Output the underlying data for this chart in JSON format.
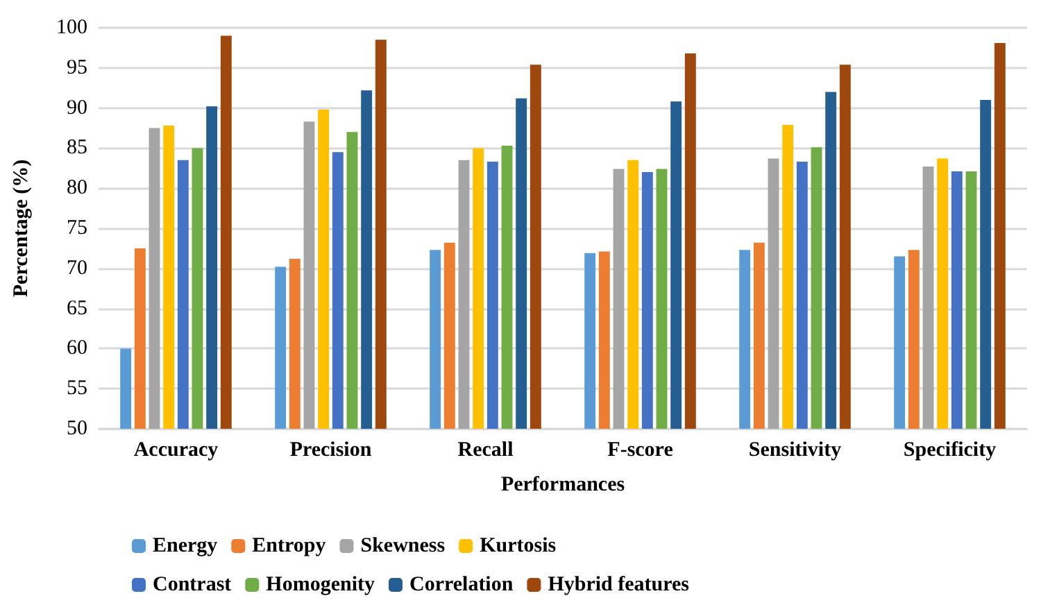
{
  "chart_data": {
    "type": "bar",
    "xlabel": "Performances",
    "ylabel": "Percentage (%)",
    "categories": [
      "Accuracy",
      "Precision",
      "Recall",
      "F-score",
      "Sensitivity",
      "Specificity"
    ],
    "series": [
      {
        "name": "Energy",
        "color": "#5b9bd5",
        "values": [
          60,
          70.2,
          72.3,
          71.9,
          72.3,
          71.5
        ]
      },
      {
        "name": "Entropy",
        "color": "#ed7d31",
        "values": [
          72.5,
          71.2,
          73.2,
          72.1,
          73.2,
          72.3
        ]
      },
      {
        "name": "Skewness",
        "color": "#a5a5a5",
        "values": [
          87.5,
          88.3,
          83.5,
          82.4,
          83.7,
          82.7
        ]
      },
      {
        "name": "Kurtosis",
        "color": "#ffc000",
        "values": [
          87.8,
          89.8,
          85,
          83.5,
          87.9,
          83.7
        ]
      },
      {
        "name": "Contrast",
        "color": "#4472c4",
        "values": [
          83.5,
          84.5,
          83.3,
          82,
          83.3,
          82.1
        ]
      },
      {
        "name": "Homogenity",
        "color": "#70ad47",
        "values": [
          85,
          87,
          85.3,
          82.4,
          85.1,
          82.1
        ]
      },
      {
        "name": "Correlation",
        "color": "#255e91",
        "values": [
          90.2,
          92.2,
          91.2,
          90.8,
          92,
          91
        ]
      },
      {
        "name": "Hybrid features",
        "color": "#9e480e",
        "values": [
          99,
          98.5,
          95.4,
          96.8,
          95.4,
          98.1
        ]
      }
    ],
    "ylim": [
      50,
      100
    ],
    "yticks": [
      50,
      55,
      60,
      65,
      70,
      75,
      80,
      85,
      90,
      95,
      100
    ],
    "grid": "y",
    "legend": "bottom"
  }
}
